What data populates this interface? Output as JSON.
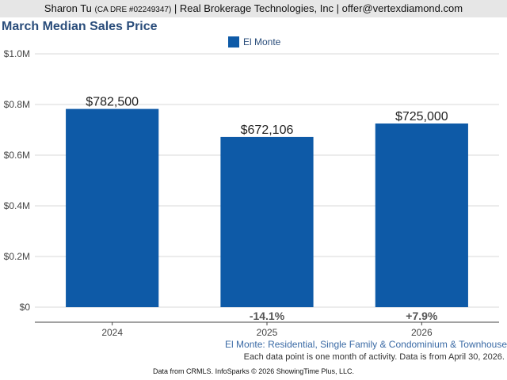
{
  "header": {
    "agent_name": "Sharon Tu",
    "dre": "(CA DRE #02249347)",
    "rest": "| Real Brokerage Technologies, Inc | offer@vertexdiamond.com"
  },
  "chart_data": {
    "type": "bar",
    "title": "March Median Sales Price",
    "categories": [
      "2024",
      "2025",
      "2026"
    ],
    "series": [
      {
        "name": "El Monte",
        "values": [
          782500,
          672106,
          725000
        ],
        "color": "#0e5aa7"
      }
    ],
    "value_labels": [
      "$782,500",
      "$672,106",
      "$725,000"
    ],
    "change_labels": [
      "",
      "-14.1%",
      "+7.9%"
    ],
    "y_ticks": [
      {
        "value": 0,
        "label": "$0"
      },
      {
        "value": 200000,
        "label": "$0.2M"
      },
      {
        "value": 400000,
        "label": "$0.4M"
      },
      {
        "value": 600000,
        "label": "$0.6M"
      },
      {
        "value": 800000,
        "label": "$0.8M"
      },
      {
        "value": 1000000,
        "label": "$1.0M"
      }
    ],
    "ylim": [
      0,
      1000000
    ],
    "grid": true,
    "legend_position": "top-center"
  },
  "footer": {
    "series_description": "El Monte: Residential, Single Family & Condominium & Townhouse",
    "note": "Each data point is one month of activity. Data is from April 30, 2026.",
    "source": "Data from CRMLS. InfoSparks © 2026 ShowingTime Plus, LLC."
  }
}
